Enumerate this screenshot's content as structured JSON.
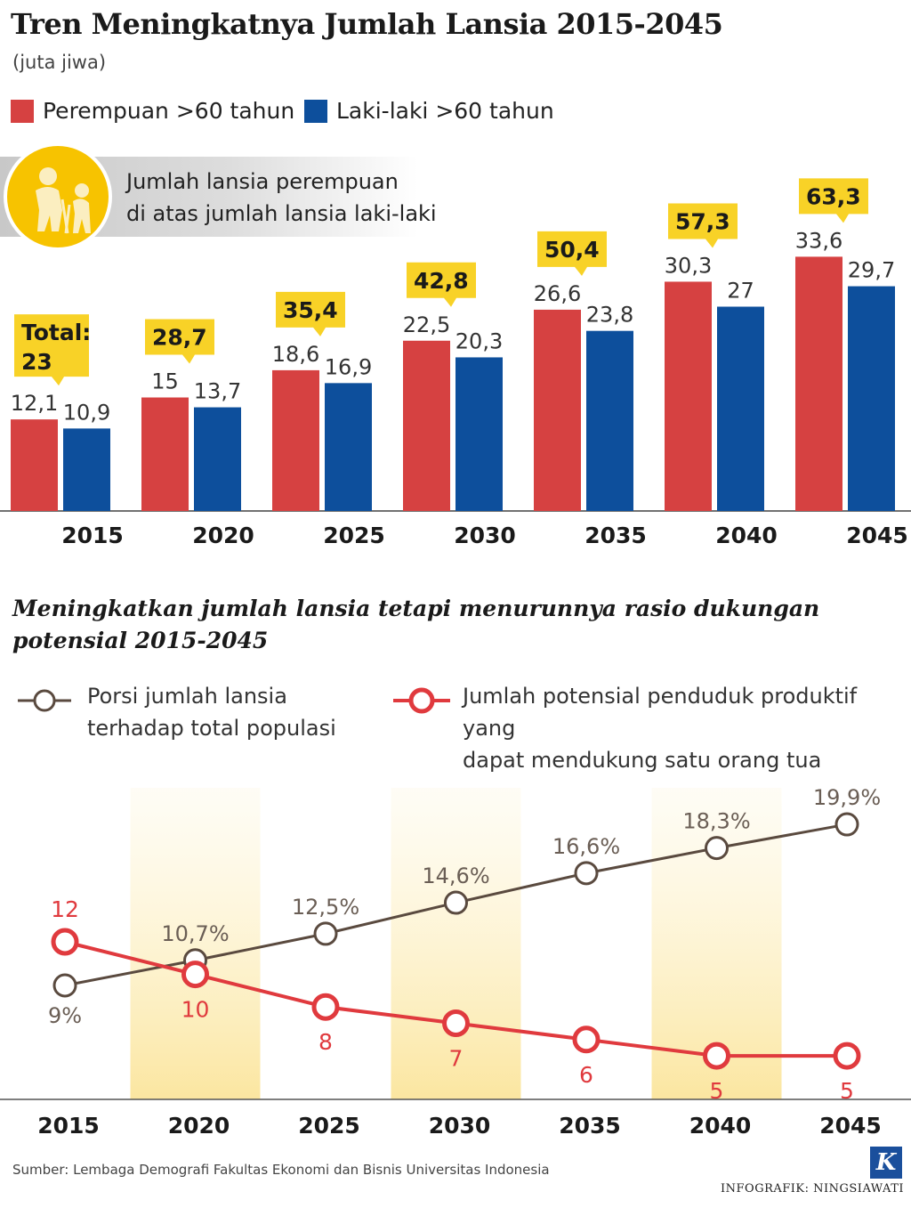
{
  "header": {
    "title": "Tren Meningkatnya Jumlah Lansia 2015-2045",
    "unit": "(juta jiwa)"
  },
  "legend": {
    "female_label": "Perempuan >60 tahun",
    "male_label": "Laki-laki >60 tahun",
    "female_color": "#d64141",
    "male_color": "#0d4f9c"
  },
  "note": {
    "line1": "Jumlah lansia perempuan",
    "line2": "di atas jumlah lansia laki-laki",
    "icon": "elderly-couple-icon"
  },
  "chart_data": [
    {
      "type": "bar",
      "title": "Tren Meningkatnya Jumlah Lansia 2015-2045",
      "unit": "(juta jiwa)",
      "categories": [
        "2015",
        "2020",
        "2025",
        "2030",
        "2035",
        "2040",
        "2045"
      ],
      "series": [
        {
          "name": "Perempuan >60 tahun",
          "values": [
            12.1,
            15,
            18.6,
            22.5,
            26.6,
            30.3,
            33.6
          ],
          "labels": [
            "12,1",
            "15",
            "18,6",
            "22,5",
            "26,6",
            "30,3",
            "33,6"
          ],
          "color": "#d64141"
        },
        {
          "name": "Laki-laki >60 tahun",
          "values": [
            10.9,
            13.7,
            16.9,
            20.3,
            23.8,
            27,
            29.7
          ],
          "labels": [
            "10,9",
            "13,7",
            "16,9",
            "20,3",
            "23,8",
            "27",
            "29,7"
          ],
          "color": "#0d4f9c"
        }
      ],
      "totals": [
        23,
        28.7,
        35.4,
        42.8,
        50.4,
        57.3,
        63.3
      ],
      "total_labels": [
        "Total:",
        "28,7",
        "35,4",
        "42,8",
        "50,4",
        "57,3",
        "63,3"
      ],
      "total_labels_line2": [
        "23",
        "",
        "",
        "",
        "",
        "",
        ""
      ],
      "ylim": [
        0,
        40
      ]
    },
    {
      "type": "line",
      "title": "Meningkatkan jumlah lansia tetapi menurunnya rasio dukungan potensial 2015-2045",
      "x": [
        "2015",
        "2020",
        "2025",
        "2030",
        "2035",
        "2040",
        "2045"
      ],
      "series": [
        {
          "name": "Porsi jumlah lansia terhadap total populasi",
          "values": [
            9,
            10.7,
            12.5,
            14.6,
            16.6,
            18.3,
            19.9
          ],
          "labels": [
            "9%",
            "10,7%",
            "12,5%",
            "14,6%",
            "16,6%",
            "18,3%",
            "19,9%"
          ],
          "color": "#5a4a3f"
        },
        {
          "name": "Jumlah potensial penduduk produktif yang dapat mendukung satu orang tua",
          "values": [
            12,
            10,
            8,
            7,
            6,
            5,
            5
          ],
          "labels": [
            "12",
            "10",
            "8",
            "7",
            "6",
            "5",
            "5"
          ],
          "color": "#e03a3e"
        }
      ],
      "highlighted_years": [
        "2020",
        "2030",
        "2040"
      ]
    }
  ],
  "subtitle": {
    "line1": "Meningkatkan jumlah lansia tetapi menurunnya rasio dukungan",
    "line2": "potensial 2015-2045"
  },
  "line_legend": {
    "brown_line1": "Porsi jumlah lansia",
    "brown_line2": "terhadap total populasi",
    "red_line1": "Jumlah potensial penduduk produktif yang",
    "red_line2": "dapat mendukung satu orang tua"
  },
  "footer": {
    "source": "Sumber: Lembaga Demografi Fakultas Ekonomi dan Bisnis Universitas Indonesia",
    "credit": "INFOGRAFIK: NINGSIAWATI",
    "logo_letter": "K"
  }
}
